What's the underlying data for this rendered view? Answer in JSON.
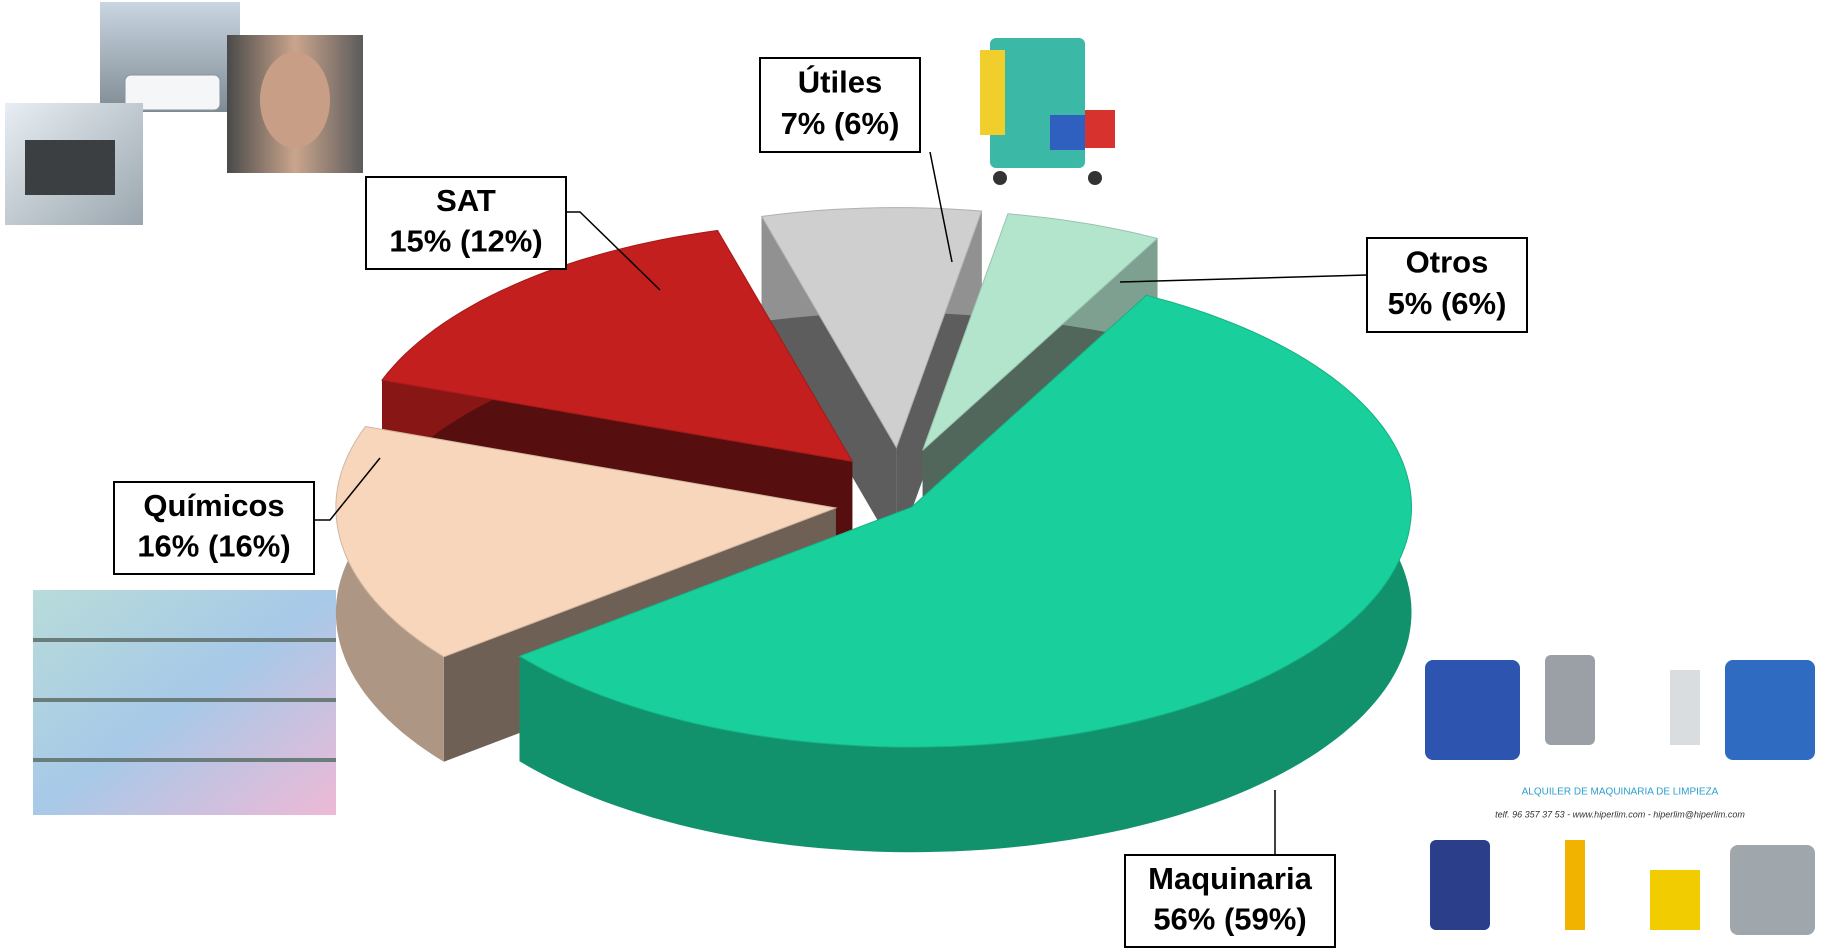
{
  "chart_data": {
    "type": "pie3d",
    "categories": [
      "Maquinaria",
      "Químicos",
      "SAT",
      "Útiles",
      "Otros"
    ],
    "values": [
      56,
      16,
      15,
      7,
      5
    ],
    "value_labels": [
      "56% (59%)",
      "16% (16%)",
      "15% (12%)",
      "7% (6%)",
      "5% (6%)"
    ],
    "colors": [
      "#19cf9b",
      "#f7d6bc",
      "#c21f1e",
      "#cfcfcf",
      "#b3e5cd"
    ],
    "annotations": [
      "ALQUILER DE MAQUINARIA DE LIMPIEZA",
      "telf. 96 357 37 53 - www.hiperlim.com - hiperlim@hiperlim.com"
    ]
  }
}
